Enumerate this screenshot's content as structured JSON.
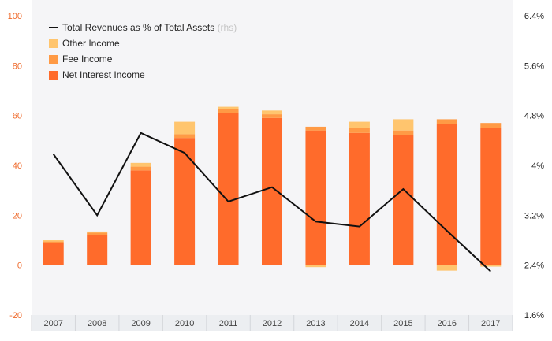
{
  "chart_data": {
    "type": "bar",
    "stacked": true,
    "categories": [
      "2007",
      "2008",
      "2009",
      "2010",
      "2011",
      "2012",
      "2013",
      "2014",
      "2015",
      "2016",
      "2017"
    ],
    "series": [
      {
        "name": "Net Interest Income",
        "color": "#ff6b2b",
        "values": [
          9,
          12,
          38,
          51,
          61,
          59,
          54,
          53,
          52,
          56.5,
          55
        ]
      },
      {
        "name": "Fee Income",
        "color": "#ff9a45",
        "values": [
          0.5,
          1.0,
          1.5,
          1.5,
          1.5,
          1.5,
          1.5,
          2.0,
          2.0,
          2.0,
          2.0
        ]
      },
      {
        "name": "Other Income",
        "color": "#ffc56e",
        "values": [
          0.5,
          0.5,
          1.5,
          5.0,
          1.0,
          1.5,
          0,
          2.5,
          4.5,
          0,
          0
        ],
        "negative_values": [
          0,
          0,
          0,
          0,
          0,
          0,
          -0.8,
          0,
          0,
          -2.2,
          -0.6
        ]
      }
    ],
    "line_series": {
      "name": "Total Revenues as % of Total Assets",
      "axis": "right",
      "color": "#111111",
      "values": [
        4.18,
        3.2,
        4.52,
        4.2,
        3.42,
        3.65,
        3.1,
        3.02,
        3.62,
        2.95,
        2.3
      ]
    },
    "y_left": {
      "min": -20,
      "max": 100,
      "ticks": [
        "-20",
        "0",
        "20",
        "40",
        "60",
        "80",
        "100"
      ]
    },
    "y_right": {
      "min": 1.6,
      "max": 6.4,
      "ticks": [
        "1.6%",
        "2.4%",
        "3.2%",
        "4%",
        "4.8%",
        "5.6%",
        "6.4%"
      ]
    },
    "legend": {
      "position": "top-left",
      "line_label": "Total Revenues as % of Total Assets",
      "line_suffix": "(rhs)",
      "items": [
        "Other Income",
        "Fee Income",
        "Net Interest Income"
      ]
    },
    "grid": false
  }
}
